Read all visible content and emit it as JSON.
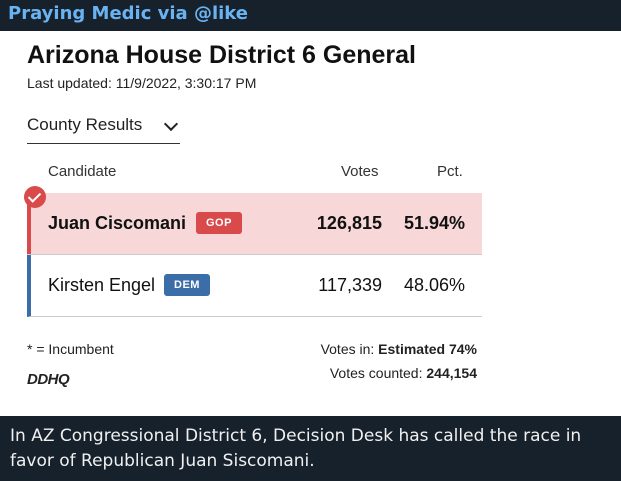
{
  "message": {
    "author": "Praying Medic via @like",
    "caption": "In AZ Congressional District 6, Decision Desk has called the race in favor of Republican Juan Siscomani."
  },
  "race": {
    "title": "Arizona House District 6 General",
    "last_updated": "Last updated: 11/9/2022, 3:30:17 PM",
    "dropdown": "County Results",
    "headers": {
      "candidate": "Candidate",
      "votes": "Votes",
      "pct": "Pct."
    },
    "candidates": [
      {
        "name": "Juan Ciscomani",
        "party": "GOP",
        "votes": "126,815",
        "pct": "51.94%",
        "winner": true
      },
      {
        "name": "Kirsten Engel",
        "party": "DEM",
        "votes": "117,339",
        "pct": "48.06%",
        "winner": false
      }
    ],
    "incumbent_note": "* = Incumbent",
    "logo": "DDHQ",
    "votes_in_label": "Votes in:",
    "votes_in_value": "Estimated 74%",
    "votes_counted_label": "Votes counted:",
    "votes_counted_value": "244,154"
  },
  "colors": {
    "gop": "#d94a4a",
    "dem": "#3b6ea8",
    "winner_bg": "#f7d7d7",
    "author": "#6ab3f3"
  }
}
